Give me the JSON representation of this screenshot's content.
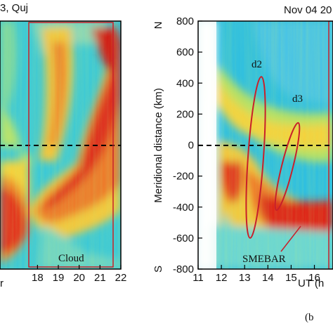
{
  "chart_data": [
    {
      "type": "heatmap",
      "title": "3, Quj",
      "xlabel": "r",
      "x_ticks": [
        "18",
        "19",
        "20",
        "21",
        "22"
      ],
      "xlim": [
        16.2,
        22
      ],
      "annotations": [
        {
          "text": "Cloud",
          "box_x": [
            18.6,
            21.8
          ],
          "box_y": [
            -780,
            790
          ]
        }
      ],
      "reference_line": 0,
      "colormap": "jet",
      "grid": false,
      "features": [
        {
          "kind": "red band",
          "x_range": [
            16.2,
            18.5
          ],
          "y_range": [
            -600,
            -400
          ]
        },
        {
          "kind": "red band",
          "x_range": [
            18.8,
            21.8
          ],
          "y_range": [
            -500,
            700
          ]
        }
      ]
    },
    {
      "type": "heatmap",
      "title": "Nov 04 20",
      "xlabel": "UT (h",
      "ylabel": "Meridional distance (km)",
      "x_ticks": [
        "11",
        "12",
        "13",
        "14",
        "15",
        "16"
      ],
      "y_ticks": [
        "800",
        "600",
        "400",
        "200",
        "0",
        "-200",
        "-400",
        "-600",
        "-800"
      ],
      "xlim": [
        11,
        16.8
      ],
      "ylim": [
        -800,
        800
      ],
      "y_end_labels": {
        "north": "N",
        "south": "S"
      },
      "reference_line": 0,
      "colormap": "jet",
      "grid": false,
      "annotations": [
        {
          "text": "d2",
          "label_at": [
            13.3,
            470
          ],
          "ellipse_center": [
            13.45,
            80
          ],
          "ellipse_half_widths": [
            0.3,
            630
          ]
        },
        {
          "text": "d3",
          "label_at": [
            15.3,
            300
          ],
          "ellipse_center": [
            14.95,
            -80
          ],
          "ellipse_half_widths": [
            0.2,
            360
          ]
        },
        {
          "text": "SMEBAR",
          "label_at": [
            13.5,
            -680
          ],
          "points_to": [
            14.3,
            -540
          ]
        }
      ],
      "features": [
        {
          "kind": "red patch",
          "x_range": [
            12.2,
            13.0
          ],
          "y_range": [
            -400,
            -100
          ]
        },
        {
          "kind": "red patch",
          "x_range": [
            14.2,
            16.5
          ],
          "y_range": [
            -550,
            -200
          ]
        },
        {
          "kind": "red patch",
          "x_range": [
            13.4,
            13.9
          ],
          "y_range": [
            -600,
            -350
          ]
        }
      ]
    }
  ],
  "panel_label": "(b",
  "colors": {
    "frame": "#000000",
    "annotation": "#c8202a",
    "zero_line": "#000000"
  }
}
